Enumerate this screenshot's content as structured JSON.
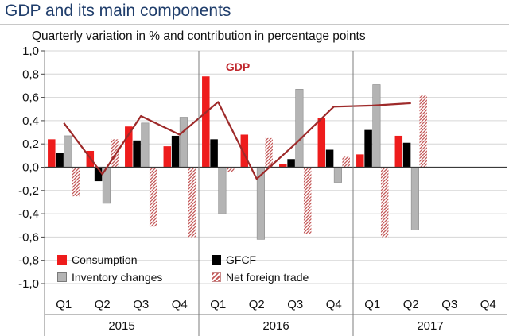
{
  "page": {
    "title": "GDP and its main components"
  },
  "chart_data": {
    "type": "bar",
    "title": "GDP and its main components",
    "subtitle": "Quarterly variation in % and contribution in percentage points",
    "categories": [
      "Q1",
      "Q2",
      "Q3",
      "Q4",
      "Q1",
      "Q2",
      "Q3",
      "Q4",
      "Q1",
      "Q2",
      "Q3",
      "Q4"
    ],
    "category_labels": [
      "Q1",
      "Q2",
      "Q3",
      "Q4",
      "Q1",
      "Q2",
      "Q3",
      "Q4",
      "Q1",
      "Q2",
      "Q3",
      "Q4"
    ],
    "years": [
      {
        "label": "2015",
        "quarters": [
          "Q1",
          "Q2",
          "Q3",
          "Q4"
        ]
      },
      {
        "label": "2016",
        "quarters": [
          "Q1",
          "Q2",
          "Q3",
          "Q4"
        ]
      },
      {
        "label": "2017",
        "quarters": [
          "Q1",
          "Q2",
          "Q3",
          "Q4"
        ]
      }
    ],
    "ylim": [
      -1.0,
      1.0
    ],
    "yticks": [
      -1.0,
      -0.8,
      -0.6,
      -0.4,
      -0.2,
      0.0,
      0.2,
      0.4,
      0.6,
      0.8,
      1.0
    ],
    "ytick_labels": [
      "-1,0",
      "-0,8",
      "-0,6",
      "-0,4",
      "-0,2",
      "0,0",
      "0,2",
      "0,4",
      "0,6",
      "0,8",
      "1,0"
    ],
    "grid": true,
    "legend_position": "bottom-left",
    "series": [
      {
        "name": "Consumption",
        "type": "bar",
        "color": "#ee1c1c",
        "values": [
          0.24,
          0.14,
          0.35,
          0.18,
          0.78,
          0.28,
          0.03,
          0.42,
          0.11,
          0.27,
          null,
          null
        ]
      },
      {
        "name": "GFCF",
        "type": "bar",
        "color": "#000000",
        "values": [
          0.12,
          -0.12,
          0.23,
          0.27,
          0.24,
          0.0,
          0.07,
          0.15,
          0.32,
          0.21,
          null,
          null
        ]
      },
      {
        "name": "Inventory changes",
        "type": "bar",
        "color": "#b4b4b4",
        "values": [
          0.27,
          -0.31,
          0.38,
          0.43,
          -0.4,
          -0.62,
          0.67,
          -0.13,
          0.71,
          -0.54,
          null,
          null
        ]
      },
      {
        "name": "Net foreign trade",
        "type": "bar",
        "color": "#c45a5a",
        "pattern": "hatched",
        "values": [
          -0.25,
          0.24,
          -0.51,
          -0.6,
          -0.04,
          0.25,
          -0.57,
          0.09,
          -0.6,
          0.62,
          null,
          null
        ]
      },
      {
        "name": "GDP",
        "type": "line",
        "color": "#9e2a2a",
        "values": [
          0.38,
          -0.06,
          0.44,
          0.28,
          0.56,
          -0.1,
          0.2,
          0.52,
          0.53,
          0.55,
          null,
          null
        ]
      }
    ],
    "annotations": [
      {
        "text": "GDP",
        "color": "#c0272d"
      }
    ]
  }
}
